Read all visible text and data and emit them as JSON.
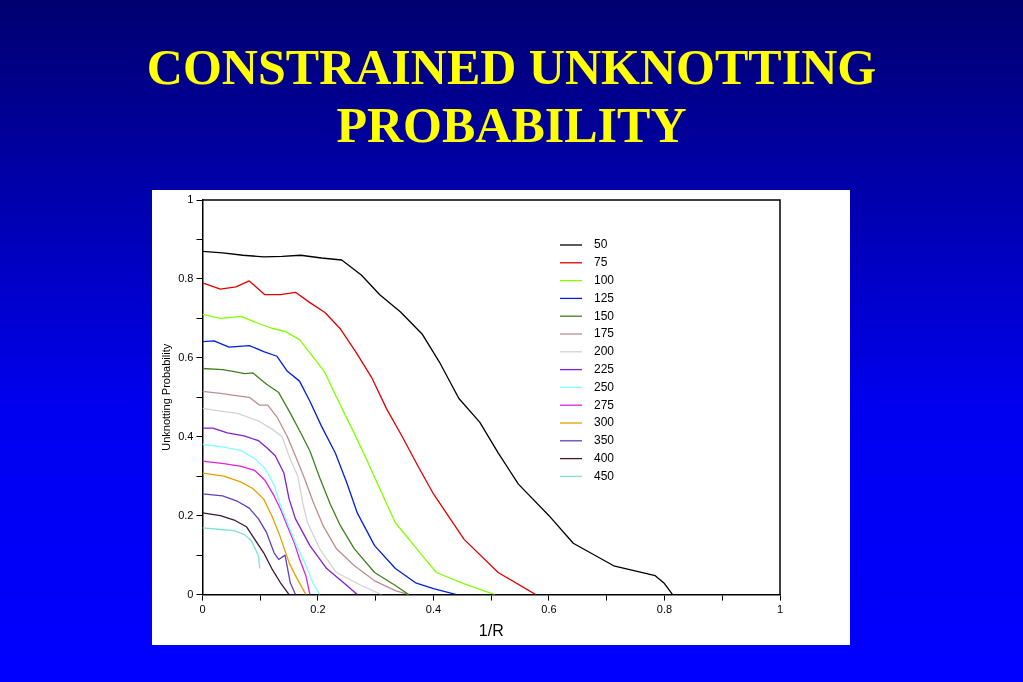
{
  "chart_data": {
    "type": "line",
    "title": "CONSTRAINED UNKNOTTING PROBABILITY",
    "xlabel": "1/R",
    "ylabel": "Unknotting Probability",
    "xlim": [
      0,
      1
    ],
    "ylim": [
      0,
      1
    ],
    "xticks": [
      0,
      {
        "value": 0.1,
        "label": null
      },
      0.2,
      {
        "value": 0.3,
        "label": null
      },
      0.4,
      {
        "value": 0.5,
        "label": null
      },
      0.6,
      {
        "value": 0.7,
        "label": null
      },
      0.8,
      {
        "value": 0.9,
        "label": null
      },
      1
    ],
    "yticks": [
      0,
      {
        "value": 0.1,
        "label": null
      },
      0.2,
      {
        "value": 0.3,
        "label": null
      },
      0.4,
      {
        "value": 0.5,
        "label": null
      },
      0.6,
      {
        "value": 0.7,
        "label": null
      },
      0.8,
      {
        "value": 0.9,
        "label": null
      },
      1
    ],
    "grid": false,
    "legend": "top right",
    "marker": "none",
    "line_style": "solid",
    "series": [
      {
        "name": "50",
        "color": "#000000",
        "x": [
          0,
          0.035,
          0.07,
          0.106,
          0.138,
          0.17,
          0.206,
          0.241,
          0.275,
          0.307,
          0.343,
          0.381,
          0.41,
          0.444,
          0.48,
          0.512,
          0.547,
          0.6,
          0.642,
          0.712,
          0.784,
          0.8,
          0.814
        ],
        "values": [
          0.87,
          0.866,
          0.86,
          0.856,
          0.857,
          0.86,
          0.853,
          0.848,
          0.81,
          0.76,
          0.716,
          0.659,
          0.59,
          0.497,
          0.437,
          0.359,
          0.28,
          0.2,
          0.13,
          0.073,
          0.048,
          0.028,
          0
        ]
      },
      {
        "name": "75",
        "color": "#e00000",
        "x": [
          0,
          0.031,
          0.058,
          0.081,
          0.108,
          0.135,
          0.161,
          0.186,
          0.212,
          0.239,
          0.266,
          0.293,
          0.319,
          0.346,
          0.373,
          0.4,
          0.453,
          0.512,
          0.577
        ],
        "values": [
          0.79,
          0.774,
          0.78,
          0.795,
          0.76,
          0.76,
          0.766,
          0.74,
          0.715,
          0.673,
          0.614,
          0.55,
          0.47,
          0.4,
          0.326,
          0.255,
          0.14,
          0.056,
          0
        ]
      },
      {
        "name": "100",
        "color": "#80ff00",
        "x": [
          0,
          0.031,
          0.067,
          0.097,
          0.12,
          0.143,
          0.168,
          0.188,
          0.212,
          0.232,
          0.259,
          0.284,
          0.307,
          0.334,
          0.381,
          0.405,
          0.452,
          0.506
        ],
        "values": [
          0.71,
          0.7,
          0.705,
          0.687,
          0.675,
          0.667,
          0.646,
          0.609,
          0.563,
          0.5,
          0.42,
          0.343,
          0.268,
          0.182,
          0.098,
          0.056,
          0.028,
          0
        ]
      },
      {
        "name": "125",
        "color": "#0020e0",
        "x": [
          0,
          0.02,
          0.046,
          0.081,
          0.106,
          0.129,
          0.147,
          0.168,
          0.186,
          0.206,
          0.23,
          0.25,
          0.268,
          0.298,
          0.334,
          0.369,
          0.4,
          0.44
        ],
        "values": [
          0.641,
          0.643,
          0.627,
          0.631,
          0.616,
          0.604,
          0.566,
          0.541,
          0.49,
          0.427,
          0.359,
          0.283,
          0.207,
          0.124,
          0.066,
          0.03,
          0.015,
          0
        ]
      },
      {
        "name": "150",
        "color": "#408020",
        "x": [
          0,
          0.035,
          0.055,
          0.073,
          0.087,
          0.111,
          0.132,
          0.152,
          0.17,
          0.186,
          0.203,
          0.221,
          0.239,
          0.263,
          0.298,
          0.334,
          0.357
        ],
        "values": [
          0.573,
          0.57,
          0.565,
          0.56,
          0.562,
          0.533,
          0.512,
          0.46,
          0.41,
          0.364,
          0.296,
          0.23,
          0.174,
          0.116,
          0.056,
          0.023,
          0
        ]
      },
      {
        "name": "175",
        "color": "#bc8f8f",
        "x": [
          0,
          0.031,
          0.055,
          0.081,
          0.099,
          0.113,
          0.129,
          0.147,
          0.161,
          0.177,
          0.191,
          0.209,
          0.232,
          0.263,
          0.298,
          0.334,
          0.357
        ],
        "values": [
          0.515,
          0.51,
          0.505,
          0.5,
          0.48,
          0.48,
          0.45,
          0.4,
          0.351,
          0.293,
          0.237,
          0.174,
          0.116,
          0.073,
          0.035,
          0.01,
          0
        ]
      },
      {
        "name": "200",
        "color": "#d3d3d3",
        "x": [
          0,
          0.031,
          0.061,
          0.097,
          0.12,
          0.138,
          0.152,
          0.165,
          0.174,
          0.182,
          0.203,
          0.232,
          0.275,
          0.31
        ],
        "values": [
          0.472,
          0.465,
          0.459,
          0.44,
          0.42,
          0.4,
          0.343,
          0.3,
          0.23,
          0.182,
          0.116,
          0.056,
          0.023,
          0
        ]
      },
      {
        "name": "225",
        "color": "#8020d0",
        "x": [
          0,
          0.018,
          0.043,
          0.072,
          0.097,
          0.111,
          0.126,
          0.141,
          0.15,
          0.161,
          0.186,
          0.215,
          0.25,
          0.268
        ],
        "values": [
          0.422,
          0.422,
          0.41,
          0.402,
          0.39,
          0.373,
          0.352,
          0.308,
          0.242,
          0.192,
          0.124,
          0.066,
          0.023,
          0
        ]
      },
      {
        "name": "250",
        "color": "#80ffff",
        "x": [
          0,
          0.037,
          0.067,
          0.09,
          0.108,
          0.124,
          0.135,
          0.147,
          0.161,
          0.177,
          0.191,
          0.203
        ],
        "values": [
          0.381,
          0.374,
          0.365,
          0.345,
          0.32,
          0.278,
          0.225,
          0.182,
          0.131,
          0.081,
          0.03,
          0
        ]
      },
      {
        "name": "275",
        "color": "#e020e0",
        "x": [
          0,
          0.037,
          0.067,
          0.09,
          0.108,
          0.124,
          0.135,
          0.147,
          0.159,
          0.168,
          0.179,
          0.186
        ],
        "values": [
          0.338,
          0.332,
          0.325,
          0.315,
          0.29,
          0.25,
          0.217,
          0.174,
          0.131,
          0.09,
          0.048,
          0
        ]
      },
      {
        "name": "300",
        "color": "#e8a000",
        "x": [
          0,
          0.037,
          0.067,
          0.087,
          0.106,
          0.12,
          0.132,
          0.141,
          0.15,
          0.161,
          0.179
        ],
        "values": [
          0.308,
          0.3,
          0.285,
          0.269,
          0.242,
          0.2,
          0.157,
          0.119,
          0.081,
          0.048,
          0
        ]
      },
      {
        "name": "350",
        "color": "#6040c0",
        "x": [
          0,
          0.035,
          0.061,
          0.081,
          0.097,
          0.111,
          0.124,
          0.132,
          0.143,
          0.152,
          0.161
        ],
        "values": [
          0.255,
          0.25,
          0.236,
          0.219,
          0.192,
          0.157,
          0.106,
          0.089,
          0.1,
          0.03,
          0
        ]
      },
      {
        "name": "400",
        "color": "#401830",
        "x": [
          0,
          0.031,
          0.055,
          0.076,
          0.09,
          0.106,
          0.12,
          0.135,
          0.15
        ],
        "values": [
          0.207,
          0.2,
          0.189,
          0.172,
          0.141,
          0.106,
          0.066,
          0.03,
          0
        ]
      },
      {
        "name": "450",
        "color": "#80e0d0",
        "x": [
          0,
          0.031,
          0.055,
          0.073,
          0.085,
          0.097,
          0.099
        ],
        "values": [
          0.169,
          0.165,
          0.162,
          0.152,
          0.136,
          0.098,
          0.066
        ]
      }
    ]
  }
}
